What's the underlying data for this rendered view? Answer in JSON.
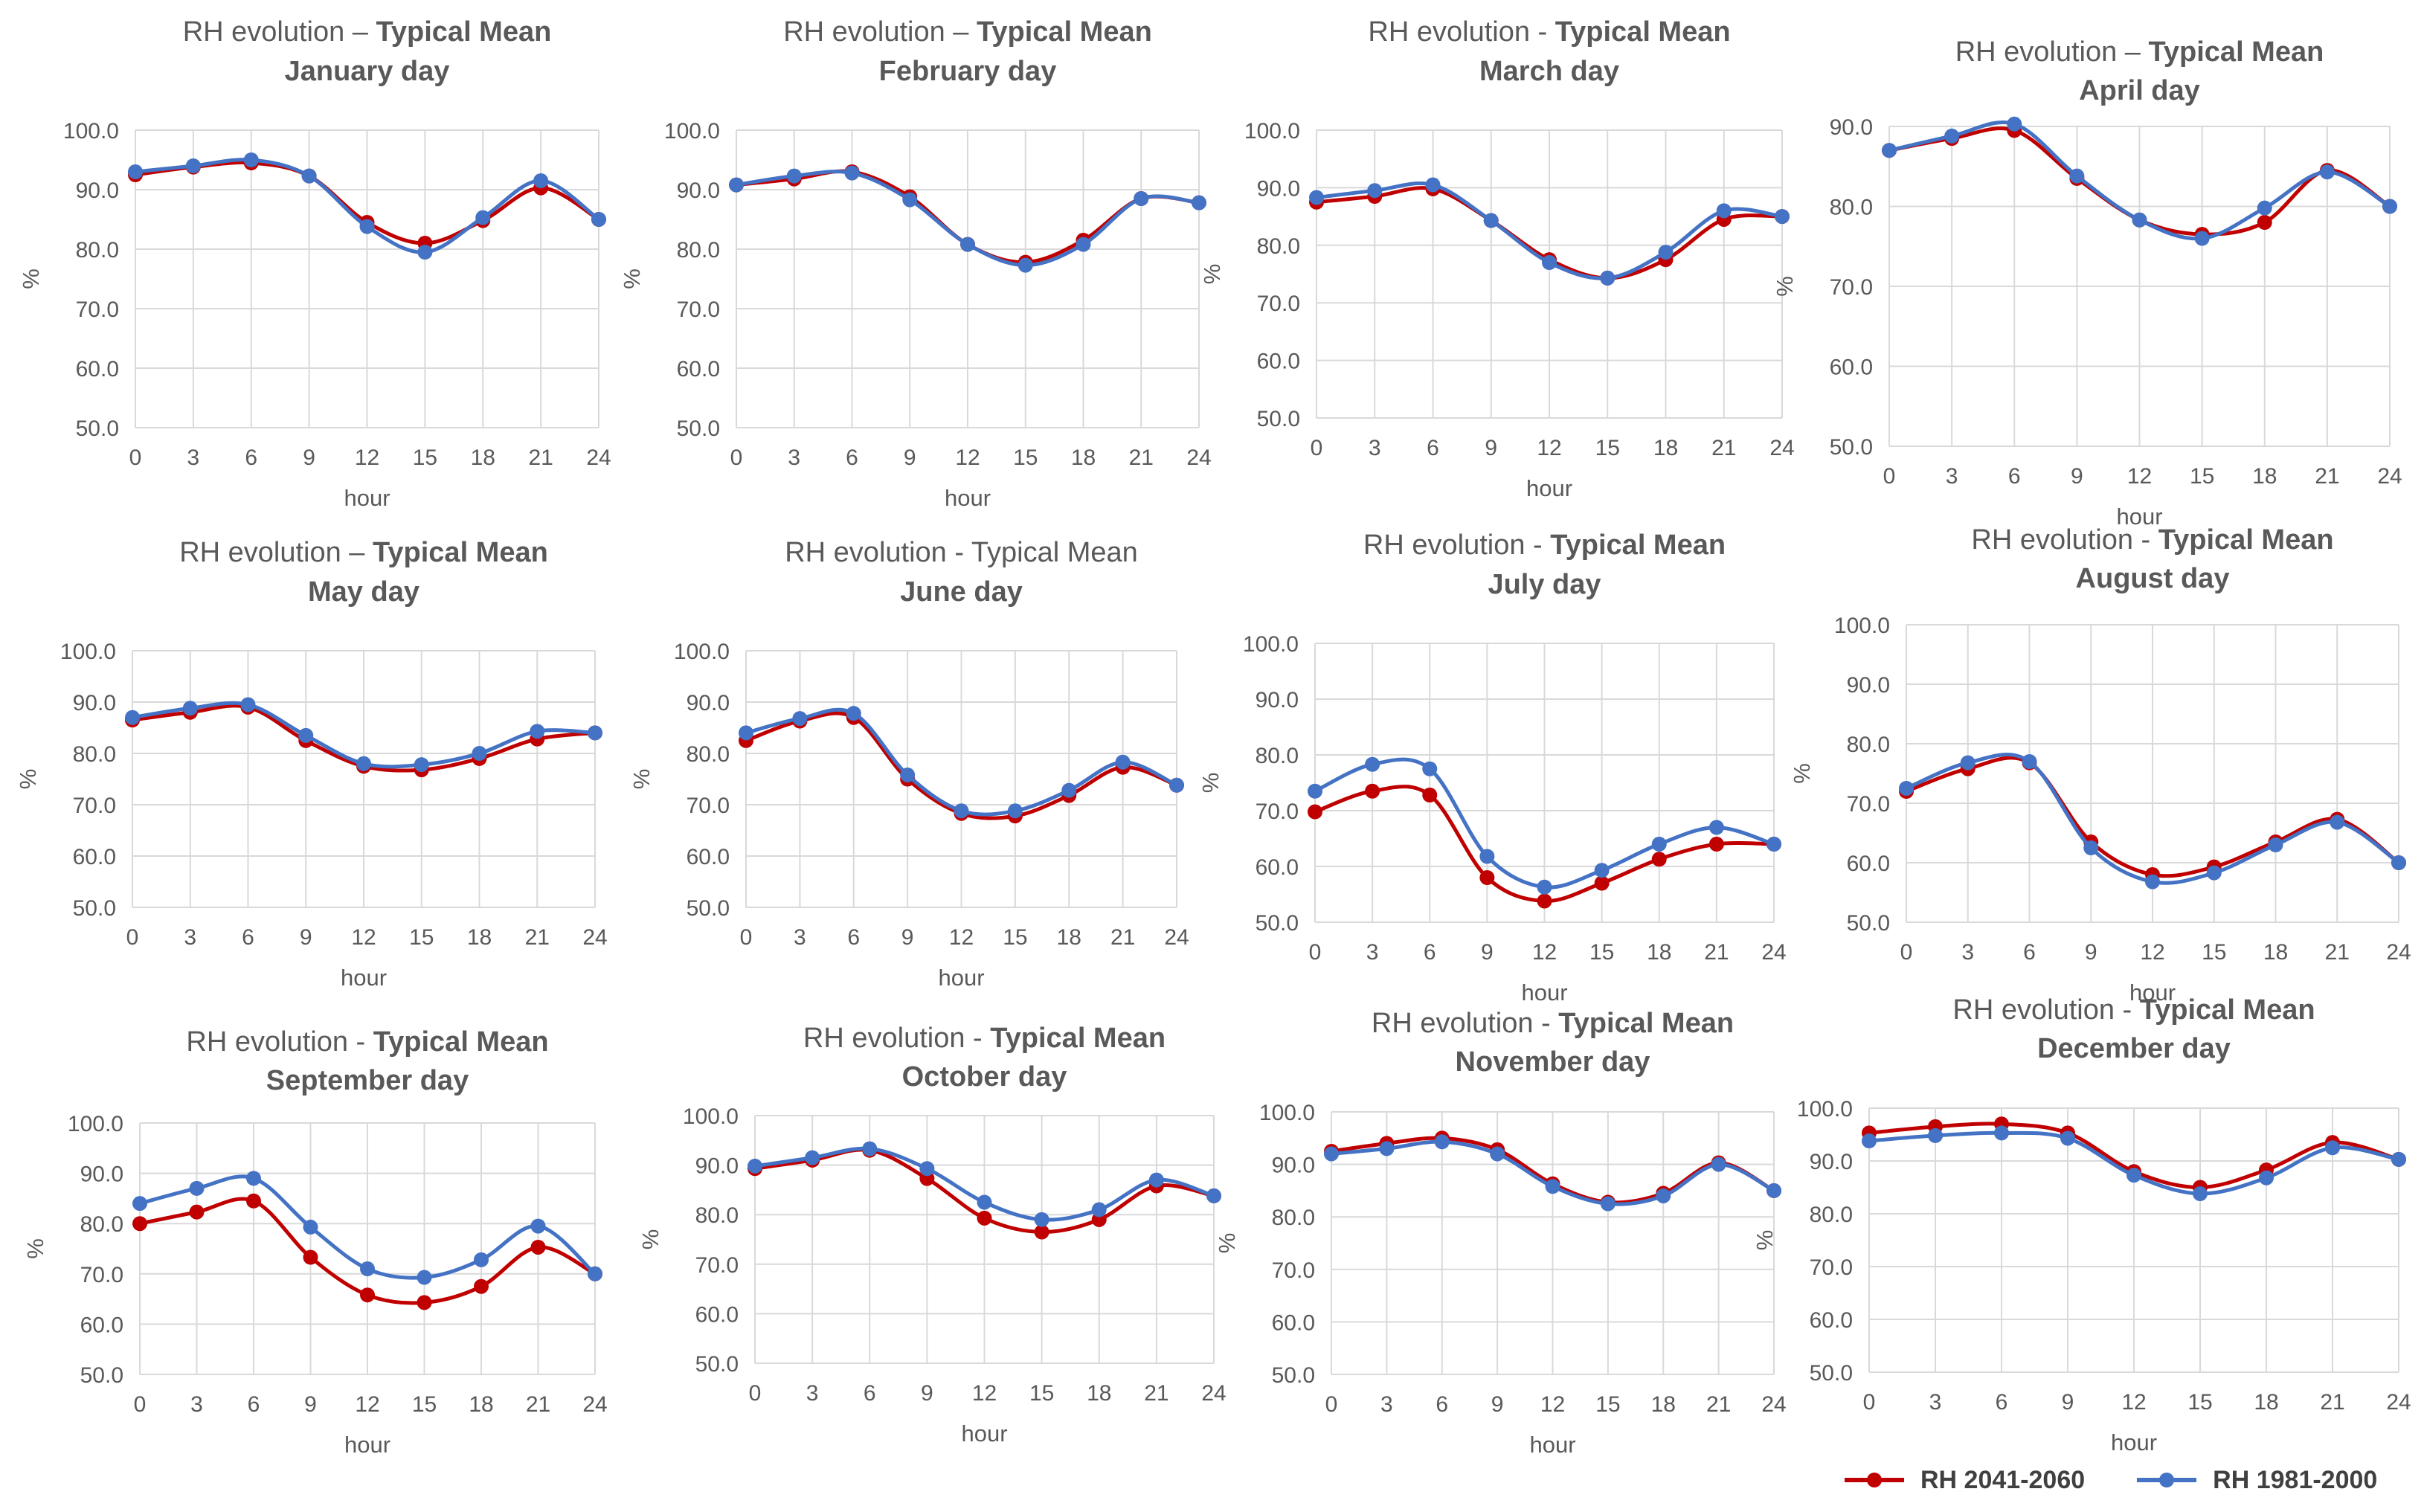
{
  "legend": {
    "series_a": "RH 2041-2060",
    "series_b": "RH 1981-2000",
    "color_a": "#C00000",
    "color_b": "#4472C4"
  },
  "chart_data": [
    {
      "type": "line",
      "title_prefix": "RH evolution – ",
      "title_bold": "Typical Mean",
      "subtitle": "January  day",
      "xlabel": "hour",
      "ylabel": "%",
      "x": [
        0,
        3,
        6,
        9,
        12,
        15,
        18,
        21,
        24
      ],
      "xlim": [
        0,
        24
      ],
      "ylim": [
        50,
        100
      ],
      "yticks": [
        "50.0",
        "60.0",
        "70.0",
        "80.0",
        "90.0",
        "100.0"
      ],
      "series": [
        {
          "name": "RH 2041-2060",
          "values": [
            92.5,
            93.8,
            94.5,
            92.3,
            84.5,
            81.0,
            84.8,
            90.3,
            85.0
          ]
        },
        {
          "name": "RH 1981-2000",
          "values": [
            93.0,
            94.0,
            95.0,
            92.3,
            83.8,
            79.5,
            85.3,
            91.5,
            85.0
          ]
        }
      ]
    },
    {
      "type": "line",
      "title_prefix": "RH evolution – ",
      "title_bold": "Typical Mean",
      "subtitle": "February day",
      "xlabel": "hour",
      "ylabel": "%",
      "x": [
        0,
        3,
        6,
        9,
        12,
        15,
        18,
        21,
        24
      ],
      "xlim": [
        0,
        24
      ],
      "ylim": [
        50,
        100
      ],
      "yticks": [
        "50.0",
        "60.0",
        "70.0",
        "80.0",
        "90.0",
        "100.0"
      ],
      "series": [
        {
          "name": "RH 2041-2060",
          "values": [
            90.8,
            91.8,
            93.0,
            88.8,
            80.8,
            77.8,
            81.5,
            88.5,
            87.8
          ]
        },
        {
          "name": "RH 1981-2000",
          "values": [
            90.8,
            92.3,
            92.8,
            88.3,
            80.8,
            77.3,
            80.8,
            88.5,
            87.8
          ]
        }
      ]
    },
    {
      "type": "line",
      "title_prefix": "RH evolution - ",
      "title_bold": "Typical Mean",
      "subtitle": "March day",
      "xlabel": "hour",
      "ylabel": "%",
      "x": [
        0,
        3,
        6,
        9,
        12,
        15,
        18,
        21,
        24
      ],
      "xlim": [
        0,
        24
      ],
      "ylim": [
        50,
        100
      ],
      "yticks": [
        "50.0",
        "60.0",
        "70.0",
        "80.0",
        "90.0",
        "100.0"
      ],
      "series": [
        {
          "name": "RH 2041-2060",
          "values": [
            87.5,
            88.5,
            89.8,
            84.3,
            77.5,
            74.3,
            77.5,
            84.5,
            85.0
          ]
        },
        {
          "name": "RH 1981-2000",
          "values": [
            88.3,
            89.5,
            90.5,
            84.3,
            77.0,
            74.3,
            78.8,
            86.0,
            85.0
          ]
        }
      ]
    },
    {
      "type": "line",
      "title_prefix": "RH evolution – ",
      "title_bold": "Typical Mean",
      "subtitle": "April day",
      "xlabel": "hour",
      "ylabel": "%",
      "x": [
        0,
        3,
        6,
        9,
        12,
        15,
        18,
        21,
        24
      ],
      "xlim": [
        0,
        24
      ],
      "ylim": [
        50,
        90
      ],
      "yticks": [
        "50.0",
        "60.0",
        "70.0",
        "80.0",
        "90.0"
      ],
      "series": [
        {
          "name": "RH 2041-2060",
          "values": [
            87.0,
            88.5,
            89.5,
            83.5,
            78.3,
            76.5,
            78.0,
            84.5,
            80.0
          ]
        },
        {
          "name": "RH 1981-2000",
          "values": [
            87.0,
            88.8,
            90.3,
            83.8,
            78.3,
            76.0,
            79.8,
            84.3,
            80.0
          ]
        }
      ]
    },
    {
      "type": "line",
      "title_prefix": "RH evolution – ",
      "title_bold": "Typical Mean",
      "subtitle": "May day",
      "xlabel": "hour",
      "ylabel": "%",
      "x": [
        0,
        3,
        6,
        9,
        12,
        15,
        18,
        21,
        24
      ],
      "xlim": [
        0,
        24
      ],
      "ylim": [
        50,
        100
      ],
      "yticks": [
        "50.0",
        "60.0",
        "70.0",
        "80.0",
        "90.0",
        "100.0"
      ],
      "series": [
        {
          "name": "RH 2041-2060",
          "values": [
            86.5,
            88.0,
            89.0,
            82.5,
            77.5,
            76.8,
            79.0,
            82.8,
            84.0
          ]
        },
        {
          "name": "RH 1981-2000",
          "values": [
            87.0,
            88.8,
            89.5,
            83.5,
            78.0,
            77.8,
            80.0,
            84.3,
            84.0
          ]
        }
      ]
    },
    {
      "type": "line",
      "title_prefix": "RH evolution - ",
      "title_bold": "",
      "subtitle": "June day",
      "title_plain_tail": "Typical Mean",
      "xlabel": "hour",
      "ylabel": "%",
      "x": [
        0,
        3,
        6,
        9,
        12,
        15,
        18,
        21,
        24
      ],
      "xlim": [
        0,
        24
      ],
      "ylim": [
        50,
        100
      ],
      "yticks": [
        "50.0",
        "60.0",
        "70.0",
        "80.0",
        "90.0",
        "100.0"
      ],
      "series": [
        {
          "name": "RH 2041-2060",
          "values": [
            82.5,
            86.3,
            87.0,
            75.0,
            68.3,
            67.8,
            71.8,
            77.3,
            73.8
          ]
        },
        {
          "name": "RH 1981-2000",
          "values": [
            84.0,
            86.8,
            87.8,
            75.8,
            68.8,
            68.8,
            72.8,
            78.3,
            73.8
          ]
        }
      ]
    },
    {
      "type": "line",
      "title_prefix": "RH evolution - ",
      "title_bold": "Typical Mean",
      "subtitle": "July day",
      "xlabel": "hour",
      "ylabel": "%",
      "x": [
        0,
        3,
        6,
        9,
        12,
        15,
        18,
        21,
        24
      ],
      "xlim": [
        0,
        24
      ],
      "ylim": [
        50,
        100
      ],
      "yticks": [
        "50.0",
        "60.0",
        "70.0",
        "80.0",
        "90.0",
        "100.0"
      ],
      "series": [
        {
          "name": "RH 2041-2060",
          "values": [
            69.8,
            73.5,
            72.8,
            58.0,
            53.8,
            57.0,
            61.3,
            64.0,
            64.0
          ]
        },
        {
          "name": "RH 1981-2000",
          "values": [
            73.5,
            78.3,
            77.5,
            61.8,
            56.3,
            59.3,
            64.0,
            67.0,
            64.0
          ]
        }
      ]
    },
    {
      "type": "line",
      "title_prefix": "RH evolution - ",
      "title_bold": "Typical Mean",
      "subtitle": "August day",
      "xlabel": "hour",
      "ylabel": "%",
      "x": [
        0,
        3,
        6,
        9,
        12,
        15,
        18,
        21,
        24
      ],
      "xlim": [
        0,
        24
      ],
      "ylim": [
        50,
        100
      ],
      "yticks": [
        "50.0",
        "60.0",
        "70.0",
        "80.0",
        "90.0",
        "100.0"
      ],
      "series": [
        {
          "name": "RH 2041-2060",
          "values": [
            72.0,
            75.8,
            76.8,
            63.5,
            58.0,
            59.3,
            63.5,
            67.3,
            60.0
          ]
        },
        {
          "name": "RH 1981-2000",
          "values": [
            72.5,
            76.8,
            77.0,
            62.5,
            56.8,
            58.3,
            63.0,
            66.8,
            60.0
          ]
        }
      ]
    },
    {
      "type": "line",
      "title_prefix": "RH evolution - ",
      "title_bold": "Typical Mean",
      "subtitle": "September day",
      "xlabel": "hour",
      "ylabel": "%",
      "x": [
        0,
        3,
        6,
        9,
        12,
        15,
        18,
        21,
        24
      ],
      "xlim": [
        0,
        24
      ],
      "ylim": [
        50,
        100
      ],
      "yticks": [
        "50.0",
        "60.0",
        "70.0",
        "80.0",
        "90.0",
        "100.0"
      ],
      "series": [
        {
          "name": "RH 2041-2060",
          "values": [
            80.0,
            82.3,
            84.5,
            73.3,
            65.8,
            64.3,
            67.5,
            75.3,
            70.0
          ]
        },
        {
          "name": "RH 1981-2000",
          "values": [
            84.0,
            87.0,
            89.0,
            79.3,
            71.0,
            69.3,
            72.8,
            79.5,
            70.0
          ]
        }
      ]
    },
    {
      "type": "line",
      "title_prefix": "RH evolution - ",
      "title_bold": "Typical Mean",
      "subtitle": "October day",
      "xlabel": "hour",
      "ylabel": "%",
      "x": [
        0,
        3,
        6,
        9,
        12,
        15,
        18,
        21,
        24
      ],
      "xlim": [
        0,
        24
      ],
      "ylim": [
        50,
        100
      ],
      "yticks": [
        "50.0",
        "60.0",
        "70.0",
        "80.0",
        "90.0",
        "100.0"
      ],
      "series": [
        {
          "name": "RH 2041-2060",
          "values": [
            89.3,
            91.0,
            93.0,
            87.3,
            79.3,
            76.5,
            79.0,
            85.8,
            83.8
          ]
        },
        {
          "name": "RH 1981-2000",
          "values": [
            89.8,
            91.5,
            93.3,
            89.3,
            82.5,
            79.0,
            81.0,
            87.0,
            83.8
          ]
        }
      ]
    },
    {
      "type": "line",
      "title_prefix": "RH evolution - ",
      "title_bold": "Typical Mean",
      "subtitle": "November day",
      "xlabel": "hour",
      "ylabel": "%",
      "x": [
        0,
        3,
        6,
        9,
        12,
        15,
        18,
        21,
        24
      ],
      "xlim": [
        0,
        24
      ],
      "ylim": [
        50,
        100
      ],
      "yticks": [
        "50.0",
        "60.0",
        "70.0",
        "80.0",
        "90.0",
        "100.0"
      ],
      "series": [
        {
          "name": "RH 2041-2060",
          "values": [
            92.5,
            94.0,
            95.0,
            92.8,
            86.3,
            82.8,
            84.5,
            90.3,
            85.0
          ]
        },
        {
          "name": "RH 1981-2000",
          "values": [
            92.0,
            93.0,
            94.3,
            92.0,
            85.8,
            82.5,
            84.0,
            90.0,
            85.0
          ]
        }
      ]
    },
    {
      "type": "line",
      "title_prefix": "RH evolution - ",
      "title_bold": "Typical Mean",
      "subtitle": "December day",
      "xlabel": "hour",
      "ylabel": "%",
      "x": [
        0,
        3,
        6,
        9,
        12,
        15,
        18,
        21,
        24
      ],
      "xlim": [
        0,
        24
      ],
      "ylim": [
        50,
        100
      ],
      "yticks": [
        "50.0",
        "60.0",
        "70.0",
        "80.0",
        "90.0",
        "100.0"
      ],
      "series": [
        {
          "name": "RH 2041-2060",
          "values": [
            95.3,
            96.5,
            97.0,
            95.3,
            88.0,
            85.0,
            88.3,
            93.5,
            90.3
          ]
        },
        {
          "name": "RH 1981-2000",
          "values": [
            93.8,
            94.8,
            95.3,
            94.3,
            87.3,
            83.8,
            86.8,
            92.5,
            90.3
          ]
        }
      ]
    }
  ]
}
